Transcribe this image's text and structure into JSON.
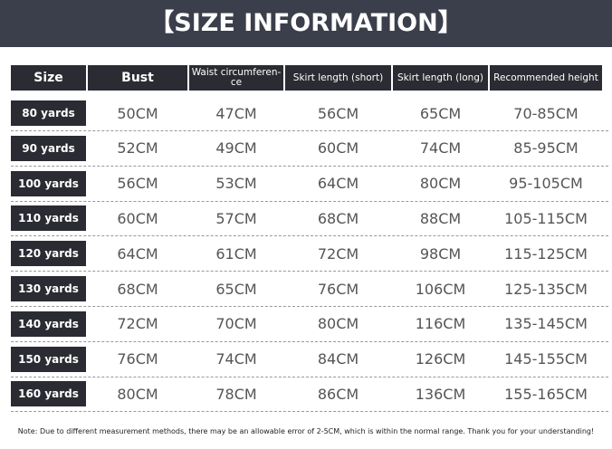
{
  "header": {
    "title": "【SIZE INFORMATION】"
  },
  "table": {
    "columns": [
      "Size",
      "Bust",
      "Waist circumferen-ce",
      "Skirt length (short)",
      "Skirt length (long)",
      "Recommended height"
    ],
    "rows": [
      [
        "80 yards",
        "50CM",
        "47CM",
        "56CM",
        "65CM",
        "70-85CM"
      ],
      [
        "90 yards",
        "52CM",
        "49CM",
        "60CM",
        "74CM",
        "85-95CM"
      ],
      [
        "100 yards",
        "56CM",
        "53CM",
        "64CM",
        "80CM",
        "95-105CM"
      ],
      [
        "110 yards",
        "60CM",
        "57CM",
        "68CM",
        "88CM",
        "105-115CM"
      ],
      [
        "120 yards",
        "64CM",
        "61CM",
        "72CM",
        "98CM",
        "115-125CM"
      ],
      [
        "130 yards",
        "68CM",
        "65CM",
        "76CM",
        "106CM",
        "125-135CM"
      ],
      [
        "140 yards",
        "72CM",
        "70CM",
        "80CM",
        "116CM",
        "135-145CM"
      ],
      [
        "150 yards",
        "76CM",
        "74CM",
        "84CM",
        "126CM",
        "145-155CM"
      ],
      [
        "160 yards",
        "80CM",
        "78CM",
        "86CM",
        "136CM",
        "155-165CM"
      ]
    ]
  },
  "note": "Note: Due to different measurement methods, there may be an allowable error of 2-5CM, which is within the normal range. Thank you for your understanding!"
}
